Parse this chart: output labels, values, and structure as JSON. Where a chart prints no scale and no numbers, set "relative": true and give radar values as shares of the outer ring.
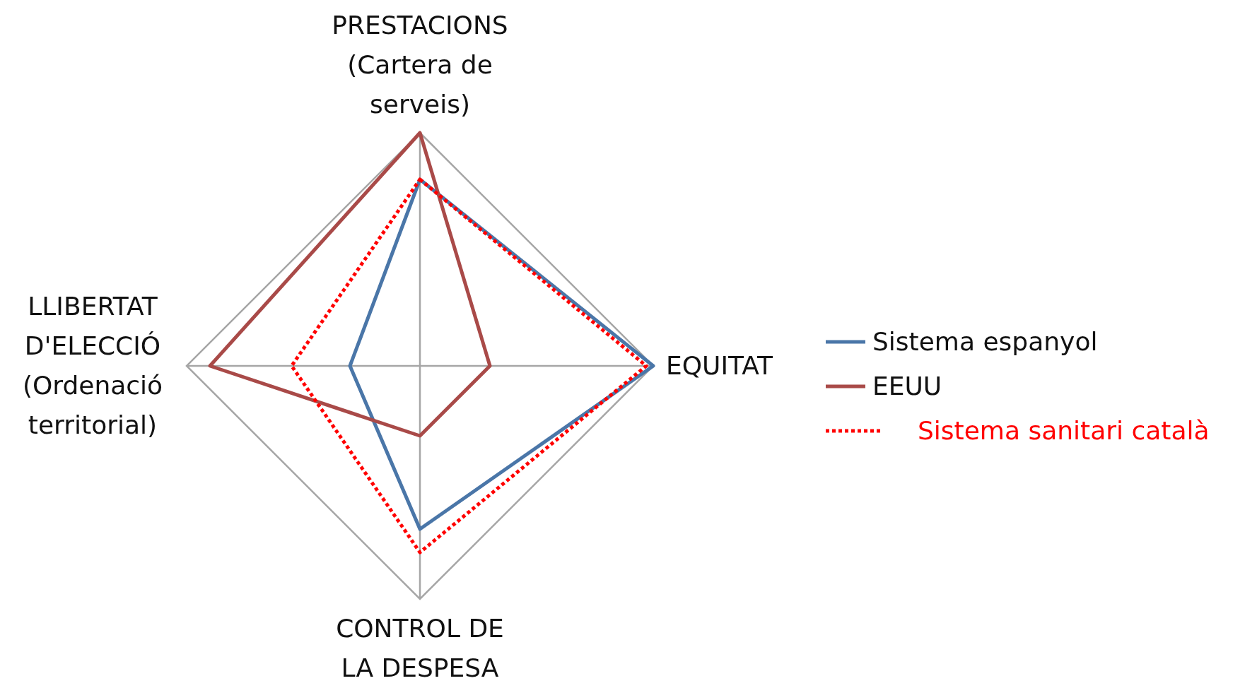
{
  "chart_data": {
    "type": "radar",
    "relative": true,
    "categories": [
      "PRESTACIONS (Cartera de serveis)",
      "EQUITAT",
      "CONTROL DE LA DESPESA",
      "LLIBERTAT D'ELECCIÓ (Ordenació territorial)"
    ],
    "series": [
      {
        "name": "Sistema espanyol",
        "color": "#4a76a8",
        "values": [
          0.8,
          1,
          0.7,
          0.3
        ]
      },
      {
        "name": "EEUU",
        "color": "#a94a48",
        "values": [
          1,
          0.3,
          0.3,
          0.9
        ]
      },
      {
        "name": "Sistema sanitari català",
        "color": "#ff0000",
        "values": [
          0.8,
          0.97,
          0.8,
          0.55
        ],
        "line_style": "dotted"
      }
    ],
    "grid": true,
    "legend": "right",
    "marker": "none",
    "line_style": "solid"
  }
}
